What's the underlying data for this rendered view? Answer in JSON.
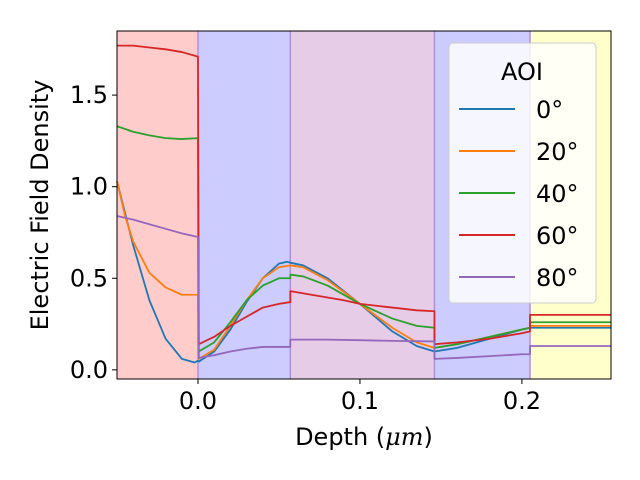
{
  "chart_data": {
    "type": "line",
    "title": "",
    "xlabel": "Depth ($\\mu m$)",
    "xlabel_parts": {
      "before": "Depth (",
      "math": "μm",
      "after": ")"
    },
    "ylabel": "Electric Field Density",
    "xlim": [
      -0.05,
      0.255
    ],
    "ylim": [
      -0.05,
      1.85
    ],
    "xticks": [
      0.0,
      0.1,
      0.2
    ],
    "xtick_labels": [
      "0.0",
      "0.1",
      "0.2"
    ],
    "yticks": [
      0.0,
      0.5,
      1.0,
      1.5
    ],
    "ytick_labels": [
      "0.0",
      "0.5",
      "1.0",
      "1.5"
    ],
    "grid": false,
    "legend": {
      "title": "AOI",
      "placement": "top-right",
      "entries": [
        "0°",
        "20°",
        "40°",
        "60°",
        "80°"
      ]
    },
    "layers": [
      {
        "x0": -0.05,
        "x1": 0.0,
        "color": "#ffcccc"
      },
      {
        "x0": 0.0,
        "x1": 0.057,
        "color": "#ccccff"
      },
      {
        "x0": 0.057,
        "x1": 0.146,
        "color": "#e6cce6"
      },
      {
        "x0": 0.146,
        "x1": 0.205,
        "color": "#ccccff"
      },
      {
        "x0": 0.205,
        "x1": 0.255,
        "color": "#ffffcc"
      }
    ],
    "boundaries": [
      0.0,
      0.057,
      0.146,
      0.205
    ],
    "boundary_color": "#b28ee0",
    "series": [
      {
        "name": "0°",
        "color": "#1f77b4",
        "points": [
          [
            -0.05,
            1.03
          ],
          [
            -0.04,
            0.68
          ],
          [
            -0.03,
            0.38
          ],
          [
            -0.02,
            0.17
          ],
          [
            -0.01,
            0.06
          ],
          [
            -0.002,
            0.04
          ],
          [
            0.0,
            0.05
          ],
          [
            0.0005,
            0.045
          ],
          [
            0.01,
            0.1
          ],
          [
            0.02,
            0.22
          ],
          [
            0.03,
            0.37
          ],
          [
            0.04,
            0.5
          ],
          [
            0.05,
            0.58
          ],
          [
            0.055,
            0.59
          ],
          [
            0.057,
            0.585
          ],
          [
            0.057,
            0.585
          ],
          [
            0.065,
            0.57
          ],
          [
            0.08,
            0.5
          ],
          [
            0.1,
            0.36
          ],
          [
            0.12,
            0.21
          ],
          [
            0.135,
            0.13
          ],
          [
            0.146,
            0.1
          ],
          [
            0.146,
            0.1
          ],
          [
            0.16,
            0.12
          ],
          [
            0.18,
            0.17
          ],
          [
            0.2,
            0.22
          ],
          [
            0.205,
            0.23
          ],
          [
            0.205,
            0.23
          ],
          [
            0.255,
            0.23
          ]
        ]
      },
      {
        "name": "20°",
        "color": "#ff7f0e",
        "points": [
          [
            -0.05,
            1.03
          ],
          [
            -0.045,
            0.84
          ],
          [
            -0.04,
            0.7
          ],
          [
            -0.03,
            0.53
          ],
          [
            -0.02,
            0.45
          ],
          [
            -0.01,
            0.41
          ],
          [
            0.0,
            0.41
          ],
          [
            0.0005,
            0.06
          ],
          [
            0.01,
            0.11
          ],
          [
            0.02,
            0.24
          ],
          [
            0.03,
            0.38
          ],
          [
            0.04,
            0.5
          ],
          [
            0.05,
            0.56
          ],
          [
            0.057,
            0.57
          ],
          [
            0.057,
            0.57
          ],
          [
            0.065,
            0.56
          ],
          [
            0.08,
            0.49
          ],
          [
            0.1,
            0.36
          ],
          [
            0.12,
            0.23
          ],
          [
            0.135,
            0.15
          ],
          [
            0.146,
            0.12
          ],
          [
            0.146,
            0.12
          ],
          [
            0.16,
            0.14
          ],
          [
            0.18,
            0.18
          ],
          [
            0.2,
            0.22
          ],
          [
            0.205,
            0.23
          ],
          [
            0.205,
            0.24
          ],
          [
            0.255,
            0.24
          ]
        ]
      },
      {
        "name": "40°",
        "color": "#2ca02c",
        "points": [
          [
            -0.05,
            1.33
          ],
          [
            -0.04,
            1.3
          ],
          [
            -0.03,
            1.28
          ],
          [
            -0.02,
            1.265
          ],
          [
            -0.01,
            1.26
          ],
          [
            0.0,
            1.265
          ],
          [
            0.0005,
            0.1
          ],
          [
            0.01,
            0.15
          ],
          [
            0.02,
            0.26
          ],
          [
            0.03,
            0.38
          ],
          [
            0.04,
            0.46
          ],
          [
            0.05,
            0.5
          ],
          [
            0.057,
            0.5
          ],
          [
            0.057,
            0.52
          ],
          [
            0.065,
            0.51
          ],
          [
            0.08,
            0.46
          ],
          [
            0.1,
            0.36
          ],
          [
            0.12,
            0.28
          ],
          [
            0.135,
            0.24
          ],
          [
            0.146,
            0.23
          ],
          [
            0.146,
            0.12
          ],
          [
            0.16,
            0.14
          ],
          [
            0.18,
            0.18
          ],
          [
            0.2,
            0.22
          ],
          [
            0.205,
            0.23
          ],
          [
            0.205,
            0.26
          ],
          [
            0.255,
            0.26
          ]
        ]
      },
      {
        "name": "60°",
        "color": "#d62728",
        "points": [
          [
            -0.05,
            1.77
          ],
          [
            -0.04,
            1.77
          ],
          [
            -0.03,
            1.76
          ],
          [
            -0.02,
            1.75
          ],
          [
            -0.01,
            1.735
          ],
          [
            0.0,
            1.71
          ],
          [
            0.0005,
            0.14
          ],
          [
            0.01,
            0.18
          ],
          [
            0.02,
            0.24
          ],
          [
            0.03,
            0.29
          ],
          [
            0.04,
            0.34
          ],
          [
            0.05,
            0.36
          ],
          [
            0.057,
            0.37
          ],
          [
            0.057,
            0.43
          ],
          [
            0.07,
            0.41
          ],
          [
            0.09,
            0.38
          ],
          [
            0.1,
            0.36
          ],
          [
            0.12,
            0.34
          ],
          [
            0.135,
            0.325
          ],
          [
            0.146,
            0.32
          ],
          [
            0.146,
            0.14
          ],
          [
            0.16,
            0.15
          ],
          [
            0.18,
            0.17
          ],
          [
            0.2,
            0.2
          ],
          [
            0.205,
            0.21
          ],
          [
            0.205,
            0.3
          ],
          [
            0.255,
            0.3
          ]
        ]
      },
      {
        "name": "80°",
        "color": "#9467bd",
        "points": [
          [
            -0.05,
            0.84
          ],
          [
            -0.04,
            0.82
          ],
          [
            -0.03,
            0.795
          ],
          [
            -0.02,
            0.77
          ],
          [
            -0.01,
            0.745
          ],
          [
            0.0,
            0.725
          ],
          [
            0.0005,
            0.065
          ],
          [
            0.01,
            0.08
          ],
          [
            0.02,
            0.1
          ],
          [
            0.03,
            0.115
          ],
          [
            0.04,
            0.125
          ],
          [
            0.05,
            0.125
          ],
          [
            0.057,
            0.125
          ],
          [
            0.057,
            0.165
          ],
          [
            0.08,
            0.165
          ],
          [
            0.1,
            0.162
          ],
          [
            0.12,
            0.158
          ],
          [
            0.146,
            0.155
          ],
          [
            0.146,
            0.06
          ],
          [
            0.16,
            0.065
          ],
          [
            0.18,
            0.075
          ],
          [
            0.2,
            0.085
          ],
          [
            0.205,
            0.085
          ],
          [
            0.205,
            0.13
          ],
          [
            0.255,
            0.13
          ]
        ]
      }
    ]
  }
}
